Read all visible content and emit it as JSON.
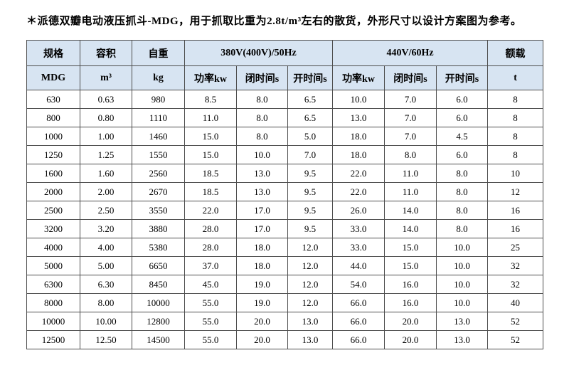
{
  "title": "＊派德双瓣电动液压抓斗-MDG，用于抓取比重为2.8t/m³左右的散货，外形尺寸以设计方案图为参考。",
  "colors": {
    "header_bg": "#d7e4f2",
    "border": "#4d4d4d",
    "text": "#000000",
    "page_bg": "#ffffff"
  },
  "table": {
    "header_row1": {
      "spec": "规格",
      "capacity": "容积",
      "self_weight": "自重",
      "freq_380": "380V(400V)/50Hz",
      "freq_440": "440V/60Hz",
      "rated_load": "额载"
    },
    "header_row2": [
      "MDG",
      "m³",
      "kg",
      "功率kw",
      "闭时间s",
      "开时间s",
      "功率kw",
      "闭时间s",
      "开时间s",
      "t"
    ],
    "rows": [
      [
        "630",
        "0.63",
        "980",
        "8.5",
        "8.0",
        "6.5",
        "10.0",
        "7.0",
        "6.0",
        "8"
      ],
      [
        "800",
        "0.80",
        "1110",
        "11.0",
        "8.0",
        "6.5",
        "13.0",
        "7.0",
        "6.0",
        "8"
      ],
      [
        "1000",
        "1.00",
        "1460",
        "15.0",
        "8.0",
        "5.0",
        "18.0",
        "7.0",
        "4.5",
        "8"
      ],
      [
        "1250",
        "1.25",
        "1550",
        "15.0",
        "10.0",
        "7.0",
        "18.0",
        "8.0",
        "6.0",
        "8"
      ],
      [
        "1600",
        "1.60",
        "2560",
        "18.5",
        "13.0",
        "9.5",
        "22.0",
        "11.0",
        "8.0",
        "10"
      ],
      [
        "2000",
        "2.00",
        "2670",
        "18.5",
        "13.0",
        "9.5",
        "22.0",
        "11.0",
        "8.0",
        "12"
      ],
      [
        "2500",
        "2.50",
        "3550",
        "22.0",
        "17.0",
        "9.5",
        "26.0",
        "14.0",
        "8.0",
        "16"
      ],
      [
        "3200",
        "3.20",
        "3880",
        "28.0",
        "17.0",
        "9.5",
        "33.0",
        "14.0",
        "8.0",
        "16"
      ],
      [
        "4000",
        "4.00",
        "5380",
        "28.0",
        "18.0",
        "12.0",
        "33.0",
        "15.0",
        "10.0",
        "25"
      ],
      [
        "5000",
        "5.00",
        "6650",
        "37.0",
        "18.0",
        "12.0",
        "44.0",
        "15.0",
        "10.0",
        "32"
      ],
      [
        "6300",
        "6.30",
        "8450",
        "45.0",
        "19.0",
        "12.0",
        "54.0",
        "16.0",
        "10.0",
        "32"
      ],
      [
        "8000",
        "8.00",
        "10000",
        "55.0",
        "19.0",
        "12.0",
        "66.0",
        "16.0",
        "10.0",
        "40"
      ],
      [
        "10000",
        "10.00",
        "12800",
        "55.0",
        "20.0",
        "13.0",
        "66.0",
        "20.0",
        "13.0",
        "52"
      ],
      [
        "12500",
        "12.50",
        "14500",
        "55.0",
        "20.0",
        "13.0",
        "66.0",
        "20.0",
        "13.0",
        "52"
      ]
    ]
  }
}
